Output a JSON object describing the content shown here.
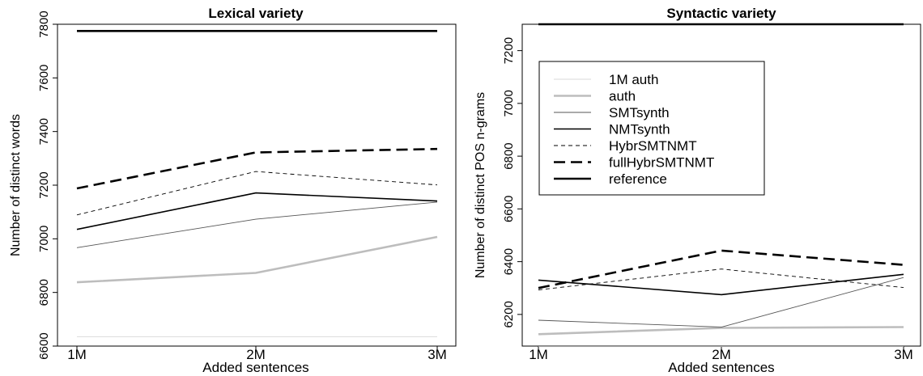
{
  "chart_data": [
    {
      "type": "line",
      "title": "Lexical variety",
      "xlabel": "Added sentences",
      "ylabel": "Number of distinct words",
      "categories": [
        "1M",
        "2M",
        "3M"
      ],
      "ylim": [
        6600,
        7800
      ],
      "yticks": [
        "6600",
        "6800",
        "7000",
        "7200",
        "7400",
        "7600",
        "7800"
      ],
      "series": [
        {
          "name": "1M auth",
          "values": [
            6635,
            6635,
            6635
          ],
          "color": "#d8d8d8",
          "dash": "solid",
          "width": "thin"
        },
        {
          "name": "auth",
          "values": [
            6838,
            6873,
            7007
          ],
          "color": "#bdbdbd",
          "dash": "solid",
          "width": "thick"
        },
        {
          "name": "SMTsynth",
          "values": [
            6967,
            7073,
            7137
          ],
          "color": "#555555",
          "dash": "solid",
          "width": "thin"
        },
        {
          "name": "NMTsynth",
          "values": [
            7035,
            7171,
            7141
          ],
          "color": "#000000",
          "dash": "solid",
          "width": "medium"
        },
        {
          "name": "HybrSMTNMT",
          "values": [
            7089,
            7251,
            7201
          ],
          "color": "#000000",
          "dash": "short",
          "width": "thin"
        },
        {
          "name": "fullHybrSMTNMT",
          "values": [
            7188,
            7322,
            7335
          ],
          "color": "#000000",
          "dash": "long",
          "width": "thick"
        },
        {
          "name": "reference",
          "values": [
            7775,
            7775,
            7775
          ],
          "color": "#000000",
          "dash": "solid",
          "width": "thick"
        }
      ],
      "grid": false,
      "legend": "none"
    },
    {
      "type": "line",
      "title": "Syntactic variety",
      "xlabel": "Added sentences",
      "ylabel": "Number of distinct POS n-grams",
      "categories": [
        "1M",
        "2M",
        "3M"
      ],
      "ylim": [
        6080,
        7300
      ],
      "yticks": [
        "6200",
        "6400",
        "6600",
        "6800",
        "7000",
        "7200"
      ],
      "series": [
        {
          "name": "1M auth",
          "values": [
            6078,
            6078,
            6078
          ],
          "color": "#d8d8d8",
          "dash": "solid",
          "width": "thin"
        },
        {
          "name": "auth",
          "values": [
            6125,
            6149,
            6152
          ],
          "color": "#bdbdbd",
          "dash": "solid",
          "width": "thick"
        },
        {
          "name": "SMTsynth",
          "values": [
            6178,
            6152,
            6340
          ],
          "color": "#555555",
          "dash": "solid",
          "width": "thin"
        },
        {
          "name": "NMTsynth",
          "values": [
            6330,
            6275,
            6352
          ],
          "color": "#000000",
          "dash": "solid",
          "width": "medium"
        },
        {
          "name": "HybrSMTNMT",
          "values": [
            6293,
            6372,
            6302
          ],
          "color": "#000000",
          "dash": "short",
          "width": "thin"
        },
        {
          "name": "fullHybrSMTNMT",
          "values": [
            6300,
            6442,
            6388
          ],
          "color": "#000000",
          "dash": "long",
          "width": "thick"
        },
        {
          "name": "reference",
          "values": [
            7300,
            7300,
            7300
          ],
          "color": "#000000",
          "dash": "solid",
          "width": "thick"
        }
      ],
      "grid": false,
      "legend": "top-left inside plot"
    }
  ]
}
